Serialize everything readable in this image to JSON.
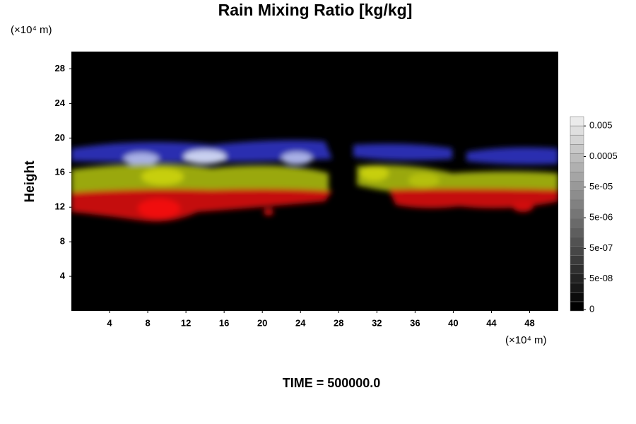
{
  "chart_data": {
    "type": "field",
    "title": "Rain Mixing Ratio [kg/kg]",
    "x_unit_label": "(×10⁴ m)",
    "y_unit_label": "(×10⁴ m)",
    "ylabel": "Height",
    "time_label": "TIME = 500000.0",
    "xlim": [
      0,
      51
    ],
    "xticks": [
      4,
      8,
      12,
      16,
      20,
      24,
      28,
      32,
      36,
      40,
      44,
      48
    ],
    "ylim": [
      0,
      30
    ],
    "yticks": [
      4,
      8,
      12,
      16,
      20,
      24,
      28
    ],
    "colorbar_ticks": [
      0,
      {
        "value": 5e-08,
        "label": "5e-08"
      },
      {
        "value": 5e-07,
        "label": "5e-07"
      },
      {
        "value": 5e-06,
        "label": "5e-06"
      },
      {
        "value": 5e-05,
        "label": "5e-05"
      },
      0.0005,
      0.005
    ]
  }
}
